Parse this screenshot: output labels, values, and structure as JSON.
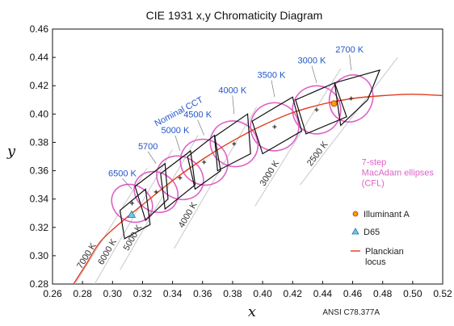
{
  "chart_data": {
    "type": "line",
    "title": "CIE 1931  x,y Chromaticity Diagram",
    "xlabel": "x",
    "ylabel": "y",
    "xlim": [
      0.26,
      0.52
    ],
    "ylim": [
      0.28,
      0.46
    ],
    "x_ticks": [
      "0.26",
      "0.28",
      "0.30",
      "0.32",
      "0.34",
      "0.36",
      "0.38",
      "0.40",
      "0.42",
      "0.44",
      "0.46",
      "0.48",
      "0.50",
      "0.52"
    ],
    "y_ticks": [
      "0.28",
      "0.30",
      "0.32",
      "0.34",
      "0.36",
      "0.38",
      "0.40",
      "0.42",
      "0.44",
      "0.46"
    ],
    "source_note": "ANSI C78.377A",
    "nominal_cct_label": "Nominal CCT",
    "ellipse_label_lines": [
      "7-step",
      "MacAdam ellipses",
      "(CFL)"
    ],
    "planckian_locus": {
      "name": "Planckian locus",
      "color": "#e03c1c",
      "points": [
        [
          0.274,
          0.28
        ],
        [
          0.283,
          0.295
        ],
        [
          0.292,
          0.31
        ],
        [
          0.305,
          0.323
        ],
        [
          0.32,
          0.336
        ],
        [
          0.34,
          0.353
        ],
        [
          0.36,
          0.368
        ],
        [
          0.38,
          0.381
        ],
        [
          0.4,
          0.392
        ],
        [
          0.42,
          0.401
        ],
        [
          0.44,
          0.407
        ],
        [
          0.46,
          0.411
        ],
        [
          0.48,
          0.413
        ],
        [
          0.5,
          0.414
        ],
        [
          0.52,
          0.413
        ]
      ]
    },
    "cct_quadrangles": [
      {
        "label": "6500 K",
        "center": [
          0.313,
          0.337
        ],
        "corners": [
          [
            0.305,
            0.332
          ],
          [
            0.322,
            0.347
          ],
          [
            0.325,
            0.322
          ],
          [
            0.308,
            0.312
          ]
        ]
      },
      {
        "label": "5700",
        "center": [
          0.329,
          0.345
        ],
        "corners": [
          [
            0.315,
            0.349
          ],
          [
            0.335,
            0.365
          ],
          [
            0.337,
            0.34
          ],
          [
            0.322,
            0.325
          ]
        ]
      },
      {
        "label": "5000 K",
        "center": [
          0.345,
          0.355
        ],
        "corners": [
          [
            0.332,
            0.358
          ],
          [
            0.352,
            0.374
          ],
          [
            0.355,
            0.35
          ],
          [
            0.335,
            0.333
          ]
        ]
      },
      {
        "label": "4500 K",
        "center": [
          0.361,
          0.366
        ],
        "corners": [
          [
            0.35,
            0.37
          ],
          [
            0.368,
            0.385
          ],
          [
            0.372,
            0.36
          ],
          [
            0.355,
            0.347
          ]
        ]
      },
      {
        "label": "4000 K",
        "center": [
          0.381,
          0.379
        ],
        "corners": [
          [
            0.368,
            0.384
          ],
          [
            0.39,
            0.4
          ],
          [
            0.392,
            0.372
          ],
          [
            0.37,
            0.36
          ]
        ]
      },
      {
        "label": "3500 K",
        "center": [
          0.408,
          0.391
        ],
        "corners": [
          [
            0.393,
            0.395
          ],
          [
            0.42,
            0.412
          ],
          [
            0.426,
            0.388
          ],
          [
            0.4,
            0.372
          ]
        ]
      },
      {
        "label": "3000 K",
        "center": [
          0.436,
          0.403
        ],
        "corners": [
          [
            0.422,
            0.41
          ],
          [
            0.448,
            0.422
          ],
          [
            0.456,
            0.398
          ],
          [
            0.429,
            0.386
          ]
        ]
      },
      {
        "label": "2700 K",
        "center": [
          0.459,
          0.411
        ],
        "corners": [
          [
            0.448,
            0.422
          ],
          [
            0.478,
            0.431
          ],
          [
            0.47,
            0.41
          ],
          [
            0.452,
            0.392
          ]
        ]
      }
    ],
    "isotherms": [
      {
        "label": "7000 K",
        "start": [
          0.275,
          0.28
        ],
        "end": [
          0.323,
          0.362
        ]
      },
      {
        "label": "6000 K",
        "start": [
          0.288,
          0.28
        ],
        "end": [
          0.34,
          0.375
        ]
      },
      {
        "label": "5000 K",
        "start": [
          0.305,
          0.29
        ],
        "end": [
          0.357,
          0.385
        ]
      },
      {
        "label": "4000 K",
        "start": [
          0.341,
          0.305
        ],
        "end": [
          0.396,
          0.405
        ]
      },
      {
        "label": "3000 K",
        "start": [
          0.395,
          0.335
        ],
        "end": [
          0.452,
          0.432
        ]
      },
      {
        "label": "2500 K",
        "start": [
          0.425,
          0.35
        ],
        "end": [
          0.49,
          0.44
        ]
      }
    ],
    "macadam_ellipses": [
      {
        "center": [
          0.313,
          0.337
        ],
        "rx": 0.012,
        "ry": 0.015,
        "angle": -58
      },
      {
        "center": [
          0.329,
          0.345
        ],
        "rx": 0.013,
        "ry": 0.016,
        "angle": -58
      },
      {
        "center": [
          0.345,
          0.355
        ],
        "rx": 0.014,
        "ry": 0.017,
        "angle": -60
      },
      {
        "center": [
          0.361,
          0.366
        ],
        "rx": 0.015,
        "ry": 0.017,
        "angle": -60
      },
      {
        "center": [
          0.381,
          0.379
        ],
        "rx": 0.015,
        "ry": 0.017,
        "angle": -62
      },
      {
        "center": [
          0.408,
          0.391
        ],
        "rx": 0.016,
        "ry": 0.017,
        "angle": -62
      },
      {
        "center": [
          0.436,
          0.403
        ],
        "rx": 0.016,
        "ry": 0.017,
        "angle": -64
      },
      {
        "center": [
          0.459,
          0.411
        ],
        "rx": 0.016,
        "ry": 0.015,
        "angle": -64
      }
    ],
    "reference_points": [
      {
        "name": "Illuminant A",
        "x": 0.4476,
        "y": 0.4074,
        "marker": "circle",
        "color": "#f4a000"
      },
      {
        "name": "D65",
        "x": 0.3127,
        "y": 0.329,
        "marker": "triangle",
        "color": "#6fc8f0"
      }
    ],
    "legend": [
      {
        "label": "Illuminant A",
        "marker": "circle",
        "color": "#f4a000"
      },
      {
        "label": "D65",
        "marker": "triangle",
        "color": "#6fc8f0"
      },
      {
        "label_lines": [
          "Planckian",
          "locus"
        ],
        "marker": "line",
        "color": "#e03c1c"
      }
    ],
    "colors": {
      "quadrangle": "#111111",
      "isotherm": "#c8c8c8",
      "ellipse": "#e060c8",
      "cct_label": "#2255cc"
    }
  }
}
